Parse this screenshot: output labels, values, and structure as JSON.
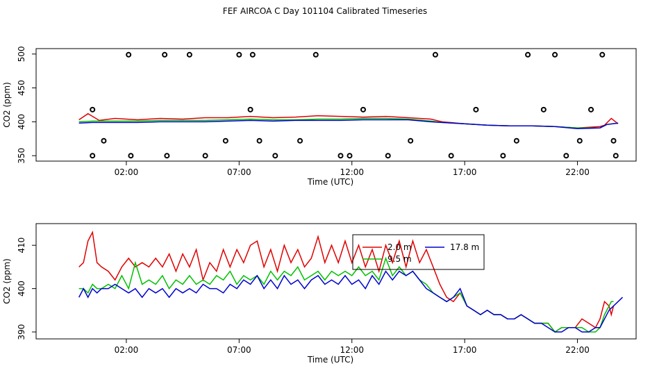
{
  "title": "FEF AIRCOA C  Day 101104  Calibrated Timeseries",
  "colors": {
    "red": "#e00000",
    "green": "#00c000",
    "blue": "#0000d0",
    "black": "#000000"
  },
  "chart_data": [
    {
      "type": "line",
      "panel": "top",
      "title": "",
      "xlabel": "Time (UTC)",
      "ylabel": "CO2 (ppm)",
      "xlim": [
        -2.0,
        24.6
      ],
      "ylim": [
        342,
        508
      ],
      "x_ticks": [
        2,
        7,
        12,
        17,
        22
      ],
      "x_tick_labels": [
        "02:00",
        "07:00",
        "12:00",
        "17:00",
        "22:00"
      ],
      "y_ticks": [
        350,
        400,
        450,
        500
      ],
      "y_tick_labels": [
        "350",
        "400",
        "450",
        "500"
      ],
      "series": [
        {
          "color": "red",
          "x": [
            -0.1,
            0.3,
            0.8,
            1.5,
            2.5,
            3.5,
            4.5,
            5.5,
            6.5,
            7.5,
            8.5,
            9.5,
            10.5,
            11.5,
            12.5,
            13.5,
            14.5,
            15.5,
            16.0,
            17.0,
            18.0,
            19.0,
            20.0,
            21.0,
            22.0,
            22.5,
            23.0,
            23.2,
            23.5,
            23.8
          ],
          "y": [
            403,
            412,
            402,
            405,
            403,
            405,
            404,
            406,
            406,
            408,
            406,
            407,
            409,
            408,
            407,
            408,
            406,
            404,
            400,
            397,
            395,
            394,
            394,
            393,
            391,
            392,
            393,
            395,
            405,
            397
          ]
        },
        {
          "color": "green",
          "x": [
            -0.1,
            0.5,
            1.5,
            2.5,
            3.5,
            4.5,
            5.5,
            6.5,
            7.5,
            8.5,
            9.5,
            10.5,
            11.5,
            12.5,
            13.5,
            14.5,
            15.5,
            16.0,
            17.0,
            18.0,
            19.0,
            20.0,
            21.0,
            22.0,
            23.0,
            23.3,
            23.8
          ],
          "y": [
            400,
            401,
            401,
            401,
            402,
            402,
            402,
            403,
            404,
            403,
            403,
            404,
            404,
            405,
            405,
            404,
            401,
            399,
            397,
            395,
            394,
            394,
            393,
            391,
            391,
            396,
            398
          ]
        },
        {
          "color": "blue",
          "x": [
            -0.1,
            0.5,
            1.5,
            2.5,
            3.5,
            4.5,
            5.5,
            6.5,
            7.5,
            8.5,
            9.5,
            10.5,
            11.5,
            12.5,
            13.5,
            14.5,
            15.5,
            16.0,
            17.0,
            18.0,
            19.0,
            20.0,
            21.0,
            22.0,
            23.0,
            23.3,
            23.8
          ],
          "y": [
            398,
            399,
            399,
            399,
            400,
            400,
            400,
            401,
            402,
            401,
            402,
            402,
            402,
            403,
            403,
            403,
            400,
            399,
            397,
            395,
            394,
            394,
            393,
            390,
            391,
            396,
            398
          ]
        },
        {
          "color": "black",
          "marker": "circle",
          "x": [
            0.5,
            1.0,
            2.1,
            3.7,
            4.8,
            7.0,
            7.6,
            0.5,
            2.2,
            3.8,
            5.5,
            6.4,
            7.5,
            7.9,
            8.6,
            9.7,
            10.4,
            11.5,
            11.9,
            12.5,
            13.6,
            14.6,
            15.7,
            16.4,
            17.5,
            18.7,
            19.3,
            19.8,
            20.5,
            21.0,
            21.5,
            22.1,
            22.6,
            23.1,
            23.6,
            23.7
          ],
          "y": [
            350,
            372,
            499,
            499,
            499,
            499,
            499,
            418,
            350,
            350,
            350,
            372,
            418,
            372,
            350,
            372,
            499,
            350,
            350,
            418,
            350,
            372,
            499,
            350,
            418,
            350,
            372,
            499,
            418,
            499,
            350,
            372,
            418,
            499,
            372,
            350
          ]
        }
      ]
    },
    {
      "type": "line",
      "panel": "bottom",
      "title": "",
      "xlabel": "Time (UTC)",
      "ylabel": "CO2 (ppm)",
      "xlim": [
        -2.0,
        24.6
      ],
      "ylim": [
        388.4,
        415.0
      ],
      "x_ticks": [
        2,
        7,
        12,
        17,
        22
      ],
      "x_tick_labels": [
        "02:00",
        "07:00",
        "12:00",
        "17:00",
        "22:00"
      ],
      "y_ticks": [
        390,
        400,
        410
      ],
      "y_tick_labels": [
        "390",
        "400",
        "410"
      ],
      "legend": {
        "placement": "top-center",
        "entries": [
          {
            "name": "2.0 m",
            "color": "red"
          },
          {
            "name": "17.8 m",
            "color": "blue"
          },
          {
            "name": "9.5 m",
            "color": "green"
          }
        ]
      },
      "series": [
        {
          "name": "2.0 m",
          "color": "red",
          "x": [
            -0.1,
            0.1,
            0.3,
            0.5,
            0.7,
            0.9,
            1.2,
            1.5,
            1.8,
            2.1,
            2.4,
            2.7,
            3.0,
            3.3,
            3.6,
            3.9,
            4.2,
            4.5,
            4.8,
            5.1,
            5.4,
            5.7,
            6.0,
            6.3,
            6.6,
            6.9,
            7.2,
            7.5,
            7.8,
            8.1,
            8.4,
            8.7,
            9.0,
            9.3,
            9.6,
            9.9,
            10.2,
            10.5,
            10.8,
            11.1,
            11.4,
            11.7,
            12.0,
            12.3,
            12.6,
            12.9,
            13.2,
            13.5,
            13.8,
            14.1,
            14.4,
            14.7,
            15.0,
            15.3,
            15.6,
            15.9,
            16.2,
            16.5,
            16.8,
            17.1,
            17.4,
            17.7,
            18.0,
            18.3,
            18.6,
            18.9,
            19.2,
            19.5,
            19.8,
            20.1,
            20.4,
            20.7,
            21.0,
            21.3,
            21.6,
            21.9,
            22.2,
            22.5,
            22.8,
            23.0,
            23.2,
            23.4,
            23.5,
            23.6
          ],
          "y": [
            405,
            406,
            411,
            413,
            406,
            405,
            404,
            402,
            405,
            407,
            405,
            406,
            405,
            407,
            405,
            408,
            404,
            408,
            405,
            409,
            402,
            406,
            404,
            409,
            405,
            409,
            406,
            410,
            411,
            405,
            409,
            404,
            410,
            406,
            409,
            405,
            407,
            412,
            406,
            410,
            406,
            411,
            406,
            410,
            405,
            409,
            404,
            410,
            406,
            411,
            405,
            411,
            406,
            409,
            405,
            401,
            398,
            397,
            399,
            396,
            395,
            394,
            395,
            394,
            394,
            393,
            393,
            394,
            393,
            392,
            392,
            392,
            390,
            391,
            391,
            391,
            393,
            392,
            391,
            393,
            397,
            396,
            394,
            396
          ]
        },
        {
          "name": "9.5 m",
          "color": "green",
          "x": [
            -0.1,
            0.1,
            0.3,
            0.5,
            0.7,
            0.9,
            1.2,
            1.5,
            1.8,
            2.1,
            2.4,
            2.7,
            3.0,
            3.3,
            3.6,
            3.9,
            4.2,
            4.5,
            4.8,
            5.1,
            5.4,
            5.7,
            6.0,
            6.3,
            6.6,
            6.9,
            7.2,
            7.5,
            7.8,
            8.1,
            8.4,
            8.7,
            9.0,
            9.3,
            9.6,
            9.9,
            10.2,
            10.5,
            10.8,
            11.1,
            11.4,
            11.7,
            12.0,
            12.3,
            12.6,
            12.9,
            13.2,
            13.5,
            13.8,
            14.1,
            14.4,
            14.7,
            15.0,
            15.3,
            15.6,
            15.9,
            16.2,
            16.5,
            16.8,
            17.1,
            17.4,
            17.7,
            18.0,
            18.3,
            18.6,
            18.9,
            19.2,
            19.5,
            19.8,
            20.1,
            20.4,
            20.7,
            21.0,
            21.3,
            21.6,
            21.9,
            22.2,
            22.5,
            22.8,
            23.0,
            23.2,
            23.4,
            23.5,
            23.6
          ],
          "y": [
            400,
            400,
            399,
            401,
            400,
            400,
            401,
            400,
            403,
            400,
            406,
            401,
            402,
            401,
            403,
            400,
            402,
            401,
            403,
            401,
            402,
            401,
            403,
            402,
            404,
            401,
            403,
            402,
            403,
            401,
            404,
            402,
            404,
            403,
            405,
            402,
            403,
            404,
            402,
            404,
            403,
            404,
            403,
            405,
            403,
            404,
            402,
            407,
            403,
            405,
            403,
            404,
            402,
            401,
            399,
            398,
            397,
            398,
            399,
            396,
            395,
            394,
            395,
            394,
            394,
            393,
            393,
            394,
            393,
            392,
            392,
            392,
            390,
            391,
            391,
            391,
            391,
            390,
            390,
            391,
            394,
            396,
            397,
            397
          ]
        },
        {
          "name": "17.8 m",
          "color": "blue",
          "x": [
            -0.1,
            0.1,
            0.3,
            0.5,
            0.7,
            0.9,
            1.2,
            1.5,
            1.8,
            2.1,
            2.4,
            2.7,
            3.0,
            3.3,
            3.6,
            3.9,
            4.2,
            4.5,
            4.8,
            5.1,
            5.4,
            5.7,
            6.0,
            6.3,
            6.6,
            6.9,
            7.2,
            7.5,
            7.8,
            8.1,
            8.4,
            8.7,
            9.0,
            9.3,
            9.6,
            9.9,
            10.2,
            10.5,
            10.8,
            11.1,
            11.4,
            11.7,
            12.0,
            12.3,
            12.6,
            12.9,
            13.2,
            13.5,
            13.8,
            14.1,
            14.4,
            14.7,
            15.0,
            15.3,
            15.6,
            15.9,
            16.2,
            16.5,
            16.8,
            17.1,
            17.4,
            17.7,
            18.0,
            18.3,
            18.6,
            18.9,
            19.2,
            19.5,
            19.8,
            20.1,
            20.4,
            20.7,
            21.0,
            21.3,
            21.6,
            21.9,
            22.2,
            22.5,
            22.8,
            23.0,
            23.2,
            23.4,
            23.6,
            24.0
          ],
          "y": [
            398,
            400,
            398,
            400,
            399,
            400,
            400,
            401,
            400,
            399,
            400,
            398,
            400,
            399,
            400,
            398,
            400,
            399,
            400,
            399,
            401,
            400,
            400,
            399,
            401,
            400,
            402,
            401,
            403,
            400,
            402,
            400,
            403,
            401,
            402,
            400,
            402,
            403,
            401,
            402,
            401,
            403,
            401,
            402,
            400,
            403,
            401,
            404,
            402,
            404,
            403,
            404,
            402,
            400,
            399,
            398,
            397,
            398,
            400,
            396,
            395,
            394,
            395,
            394,
            394,
            393,
            393,
            394,
            393,
            392,
            392,
            391,
            390,
            390,
            391,
            391,
            390,
            390,
            391,
            391,
            393,
            395,
            396,
            398
          ]
        }
      ]
    }
  ]
}
